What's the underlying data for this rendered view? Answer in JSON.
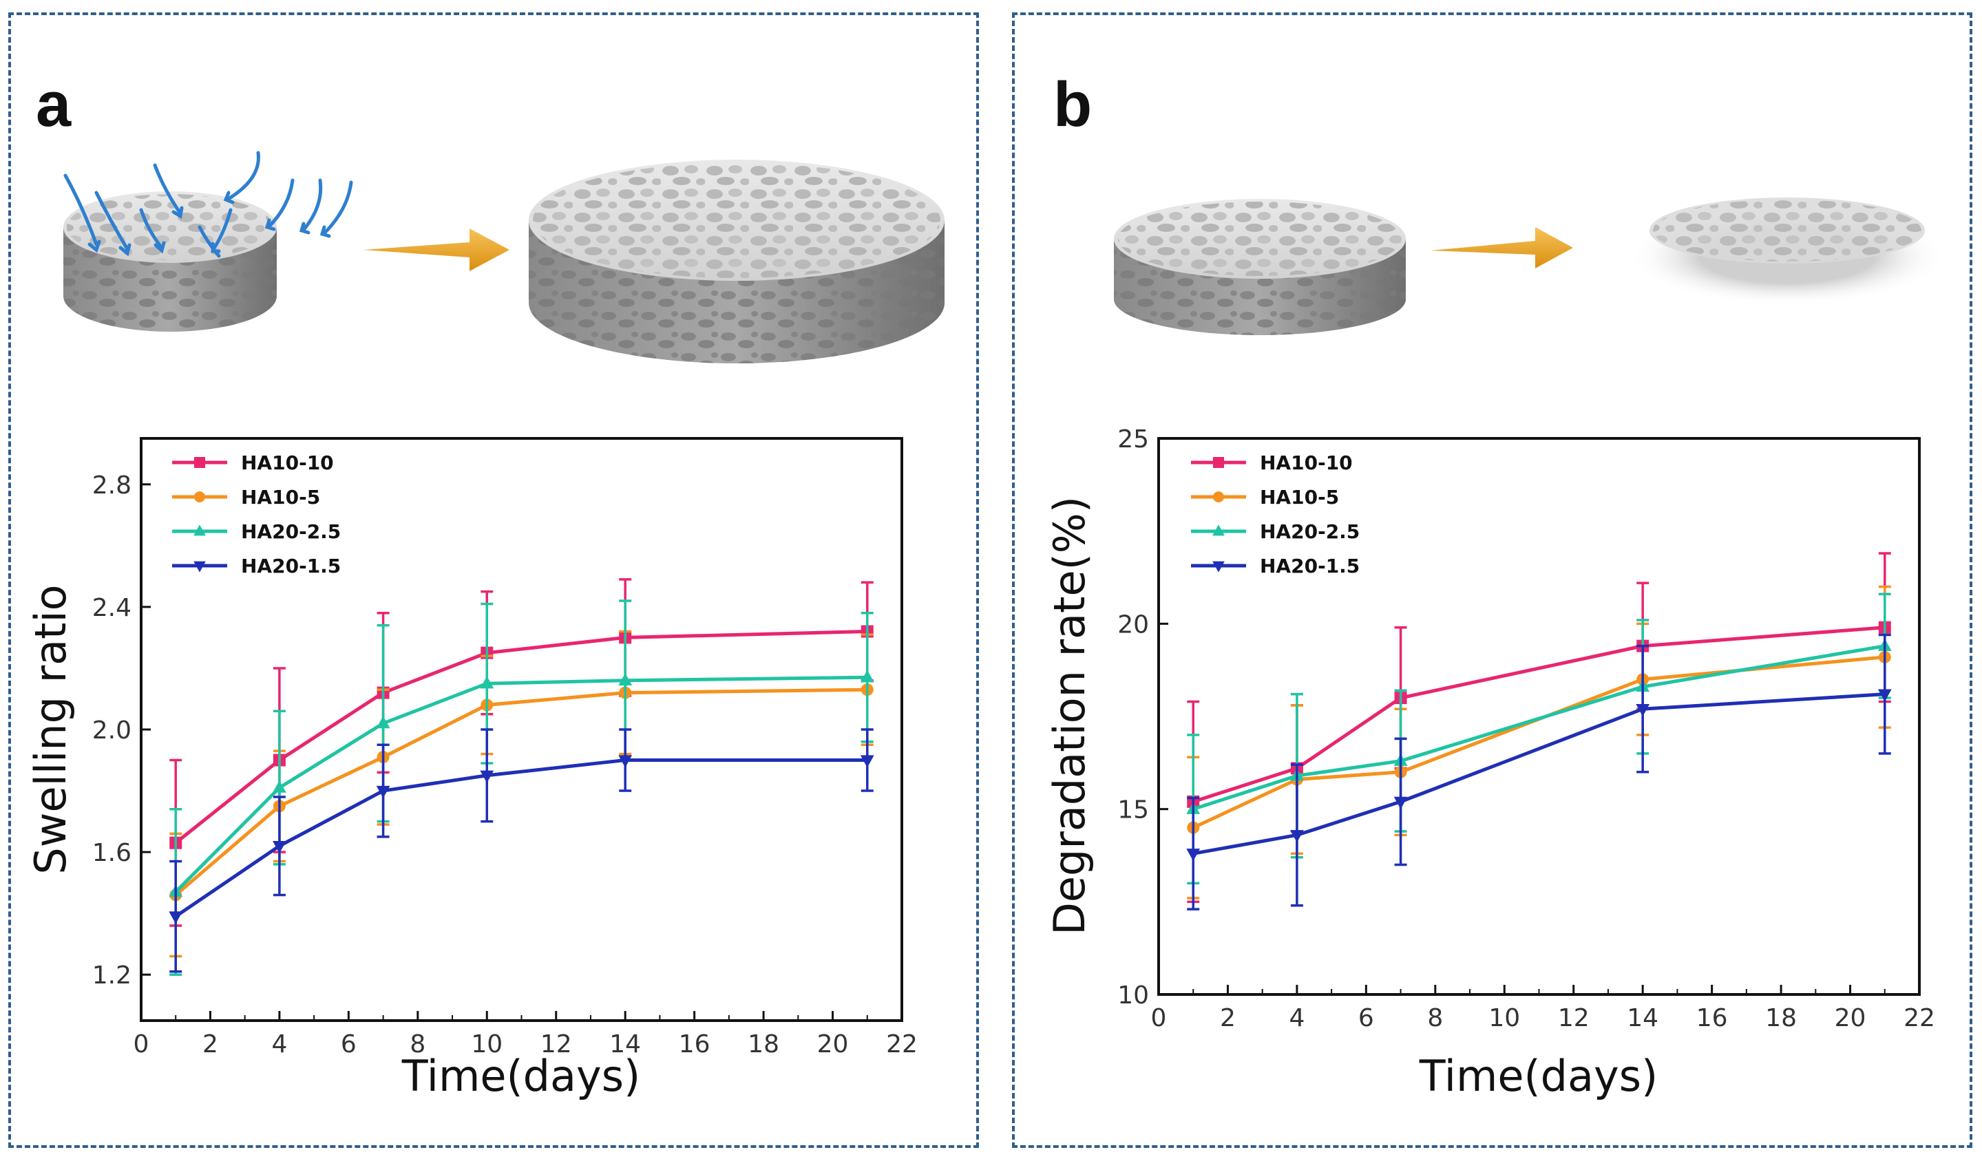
{
  "panels": {
    "a": {
      "letter": "a"
    },
    "b": {
      "letter": "b"
    }
  },
  "series_colors": {
    "HA10-10": "#e8266f",
    "HA10-5": "#f5921e",
    "HA20-2.5": "#1fc4a3",
    "HA20-1.5": "#1f2fb5"
  },
  "chart_data": [
    {
      "id": "a",
      "type": "line",
      "title": "",
      "xlabel": "Time(days)",
      "ylabel": "Swelling ratio",
      "xlim": [
        0,
        22
      ],
      "ylim": [
        1.05,
        2.95
      ],
      "xticks": [
        0,
        2,
        4,
        6,
        8,
        10,
        12,
        14,
        16,
        18,
        20,
        22
      ],
      "yticks": [
        1.2,
        1.6,
        2.0,
        2.4,
        2.8
      ],
      "ytick_labels": [
        "1.2",
        "1.6",
        "2.0",
        "2.4",
        "2.8"
      ],
      "x": [
        1,
        4,
        7,
        10,
        14,
        21
      ],
      "series": [
        {
          "name": "HA10-10",
          "marker": "square",
          "values": [
            1.63,
            1.9,
            2.12,
            2.25,
            2.3,
            2.32
          ],
          "errors": [
            0.27,
            0.3,
            0.26,
            0.2,
            0.19,
            0.16
          ]
        },
        {
          "name": "HA10-5",
          "marker": "circle",
          "values": [
            1.46,
            1.75,
            1.91,
            2.08,
            2.12,
            2.13
          ],
          "errors": [
            0.2,
            0.18,
            0.22,
            0.16,
            0.2,
            0.18
          ]
        },
        {
          "name": "HA20-2.5",
          "marker": "triangle-up",
          "values": [
            1.47,
            1.81,
            2.02,
            2.15,
            2.16,
            2.17
          ],
          "errors": [
            0.27,
            0.25,
            0.32,
            0.26,
            0.26,
            0.21
          ]
        },
        {
          "name": "HA20-1.5",
          "marker": "triangle-down",
          "values": [
            1.39,
            1.62,
            1.8,
            1.85,
            1.9,
            1.9
          ],
          "errors": [
            0.18,
            0.16,
            0.15,
            0.15,
            0.1,
            0.1
          ]
        }
      ]
    },
    {
      "id": "b",
      "type": "line",
      "title": "",
      "xlabel": "Time(days)",
      "ylabel": "Degradation rate(%)",
      "xlim": [
        0,
        22
      ],
      "ylim": [
        10,
        25
      ],
      "xticks": [
        0,
        2,
        4,
        6,
        8,
        10,
        12,
        14,
        16,
        18,
        20,
        22
      ],
      "yticks": [
        10,
        15,
        20,
        25
      ],
      "ytick_labels": [
        "10",
        "15",
        "20",
        "25"
      ],
      "x": [
        1,
        4,
        7,
        14,
        21
      ],
      "series": [
        {
          "name": "HA10-10",
          "marker": "square",
          "values": [
            15.2,
            16.1,
            18.0,
            19.4,
            19.9
          ],
          "errors": [
            2.7,
            1.7,
            1.9,
            1.7,
            2.0
          ]
        },
        {
          "name": "HA10-5",
          "marker": "circle",
          "values": [
            14.5,
            15.8,
            16.0,
            18.5,
            19.1
          ],
          "errors": [
            1.9,
            2.0,
            1.7,
            1.5,
            1.9
          ]
        },
        {
          "name": "HA20-2.5",
          "marker": "triangle-up",
          "values": [
            15.0,
            15.9,
            16.3,
            18.3,
            19.4
          ],
          "errors": [
            2.0,
            2.2,
            1.9,
            1.8,
            1.4
          ]
        },
        {
          "name": "HA20-1.5",
          "marker": "triangle-down",
          "values": [
            13.8,
            14.3,
            15.2,
            17.7,
            18.1
          ],
          "errors": [
            1.5,
            1.9,
            1.7,
            1.7,
            1.6
          ]
        }
      ]
    }
  ]
}
